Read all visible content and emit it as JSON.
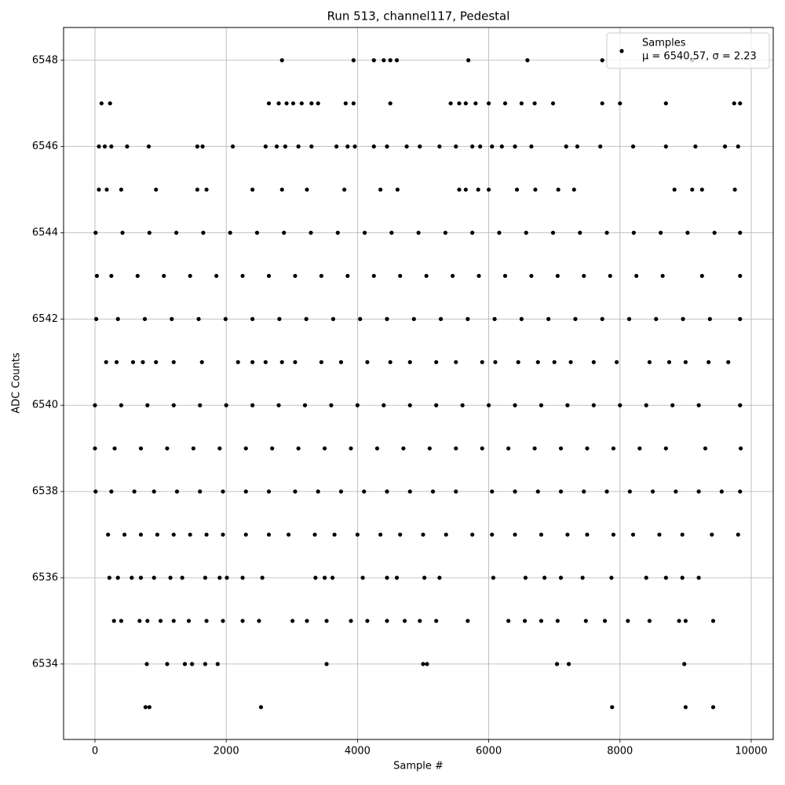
{
  "chart_data": {
    "type": "scatter",
    "title": "Run 513, channel117, Pedestal",
    "x_label": "Sample #",
    "y_label": "ADC Counts",
    "legend_stats": "μ = 6540.57, σ = 2.23",
    "legend_loc": "upper right",
    "grid": true,
    "xlim": [
      -478,
      10335
    ],
    "ylim": [
      6532.25,
      6548.76
    ],
    "xticks": [
      0,
      2000,
      4000,
      6000,
      8000,
      10000
    ],
    "yticks": [
      6534,
      6536,
      6538,
      6540,
      6542,
      6544,
      6546,
      6548
    ],
    "series": [
      {
        "name": "Samples",
        "color": "#000000",
        "x": [
          2850,
          3940,
          4250,
          4400,
          4500,
          4600,
          5690,
          6590,
          7730,
          9100,
          100,
          230,
          2650,
          2800,
          2920,
          3020,
          3150,
          3300,
          3400,
          3820,
          3940,
          4500,
          5420,
          5550,
          5650,
          5800,
          6000,
          6250,
          6500,
          6700,
          6980,
          7730,
          8000,
          8700,
          9740,
          9830,
          60,
          150,
          250,
          490,
          820,
          1560,
          1640,
          2100,
          2600,
          2770,
          2900,
          3100,
          3300,
          3680,
          3850,
          3960,
          4250,
          4450,
          4750,
          4950,
          5250,
          5500,
          5750,
          5870,
          6050,
          6200,
          6400,
          6650,
          7180,
          7350,
          7700,
          8200,
          8700,
          9150,
          9600,
          9800,
          60,
          180,
          400,
          930,
          1560,
          1700,
          2400,
          2850,
          3230,
          3800,
          4350,
          4610,
          5550,
          5650,
          5840,
          6000,
          6430,
          6710,
          7060,
          7300,
          8830,
          9100,
          9250,
          9750,
          10,
          420,
          830,
          1240,
          1650,
          2060,
          2470,
          2880,
          3290,
          3700,
          4110,
          4520,
          4930,
          5340,
          5750,
          6160,
          6570,
          6980,
          7390,
          7800,
          8210,
          8620,
          9030,
          9440,
          9830,
          30,
          250,
          650,
          1050,
          1450,
          1850,
          2250,
          2650,
          3050,
          3450,
          3850,
          4250,
          4650,
          5050,
          5450,
          5850,
          6250,
          6650,
          7050,
          7450,
          7850,
          8250,
          8650,
          9250,
          9830,
          20,
          350,
          760,
          1170,
          1580,
          1990,
          2400,
          2810,
          3220,
          3630,
          4040,
          4450,
          4860,
          5270,
          5680,
          6090,
          6500,
          6910,
          7320,
          7730,
          8140,
          8550,
          8960,
          9370,
          9830,
          170,
          330,
          580,
          730,
          930,
          1200,
          1630,
          2180,
          2400,
          2600,
          2850,
          3050,
          3450,
          3750,
          4150,
          4500,
          4800,
          5200,
          5500,
          5900,
          6100,
          6450,
          6750,
          7000,
          7250,
          7600,
          7950,
          8450,
          8750,
          9000,
          9350,
          9650,
          0,
          400,
          800,
          1200,
          1600,
          2000,
          2400,
          2800,
          3200,
          3600,
          4000,
          4400,
          4800,
          5200,
          5600,
          6000,
          6400,
          6800,
          7200,
          7600,
          8000,
          8400,
          8800,
          9200,
          9830,
          0,
          300,
          700,
          1100,
          1500,
          1900,
          2300,
          2700,
          3100,
          3500,
          3900,
          4300,
          4700,
          5100,
          5500,
          5900,
          6300,
          6700,
          7100,
          7500,
          7900,
          8300,
          8700,
          9300,
          9840,
          10,
          250,
          600,
          900,
          1250,
          1600,
          1950,
          2300,
          2650,
          3050,
          3400,
          3750,
          4100,
          4450,
          4800,
          5150,
          5500,
          6050,
          6400,
          6750,
          7100,
          7450,
          7800,
          8150,
          8500,
          8850,
          9200,
          9550,
          9830,
          200,
          450,
          700,
          950,
          1200,
          1450,
          1700,
          1950,
          2300,
          2650,
          2950,
          3350,
          3650,
          4000,
          4350,
          4650,
          5000,
          5350,
          5750,
          6050,
          6400,
          6800,
          7200,
          7500,
          7900,
          8200,
          8600,
          8950,
          9400,
          9800,
          220,
          350,
          560,
          700,
          900,
          1150,
          1330,
          1680,
          1900,
          2010,
          2250,
          2550,
          3360,
          3500,
          3620,
          4080,
          4450,
          4600,
          5020,
          5250,
          6070,
          6560,
          6850,
          7100,
          7430,
          7870,
          8400,
          8700,
          8950,
          9200,
          290,
          400,
          680,
          800,
          1000,
          1200,
          1430,
          1700,
          1950,
          2250,
          2500,
          3010,
          3230,
          3530,
          3900,
          4150,
          4450,
          4720,
          4950,
          5200,
          5680,
          6300,
          6550,
          6800,
          7050,
          7480,
          7770,
          8120,
          8450,
          8900,
          9000,
          9420,
          790,
          1100,
          1370,
          1480,
          1680,
          1870,
          3530,
          5000,
          5060,
          7040,
          7220,
          8980,
          770,
          830,
          2530,
          7880,
          9000,
          9420
        ],
        "values": [
          6548,
          6548,
          6548,
          6548,
          6548,
          6548,
          6548,
          6548,
          6548,
          6548,
          6547,
          6547,
          6547,
          6547,
          6547,
          6547,
          6547,
          6547,
          6547,
          6547,
          6547,
          6547,
          6547,
          6547,
          6547,
          6547,
          6547,
          6547,
          6547,
          6547,
          6547,
          6547,
          6547,
          6547,
          6547,
          6547,
          6546,
          6546,
          6546,
          6546,
          6546,
          6546,
          6546,
          6546,
          6546,
          6546,
          6546,
          6546,
          6546,
          6546,
          6546,
          6546,
          6546,
          6546,
          6546,
          6546,
          6546,
          6546,
          6546,
          6546,
          6546,
          6546,
          6546,
          6546,
          6546,
          6546,
          6546,
          6546,
          6546,
          6546,
          6546,
          6546,
          6545,
          6545,
          6545,
          6545,
          6545,
          6545,
          6545,
          6545,
          6545,
          6545,
          6545,
          6545,
          6545,
          6545,
          6545,
          6545,
          6545,
          6545,
          6545,
          6545,
          6545,
          6545,
          6545,
          6545,
          6544,
          6544,
          6544,
          6544,
          6544,
          6544,
          6544,
          6544,
          6544,
          6544,
          6544,
          6544,
          6544,
          6544,
          6544,
          6544,
          6544,
          6544,
          6544,
          6544,
          6544,
          6544,
          6544,
          6544,
          6544,
          6543,
          6543,
          6543,
          6543,
          6543,
          6543,
          6543,
          6543,
          6543,
          6543,
          6543,
          6543,
          6543,
          6543,
          6543,
          6543,
          6543,
          6543,
          6543,
          6543,
          6543,
          6543,
          6543,
          6543,
          6543,
          6542,
          6542,
          6542,
          6542,
          6542,
          6542,
          6542,
          6542,
          6542,
          6542,
          6542,
          6542,
          6542,
          6542,
          6542,
          6542,
          6542,
          6542,
          6542,
          6542,
          6542,
          6542,
          6542,
          6542,
          6542,
          6541,
          6541,
          6541,
          6541,
          6541,
          6541,
          6541,
          6541,
          6541,
          6541,
          6541,
          6541,
          6541,
          6541,
          6541,
          6541,
          6541,
          6541,
          6541,
          6541,
          6541,
          6541,
          6541,
          6541,
          6541,
          6541,
          6541,
          6541,
          6541,
          6541,
          6541,
          6541,
          6540,
          6540,
          6540,
          6540,
          6540,
          6540,
          6540,
          6540,
          6540,
          6540,
          6540,
          6540,
          6540,
          6540,
          6540,
          6540,
          6540,
          6540,
          6540,
          6540,
          6540,
          6540,
          6540,
          6540,
          6540,
          6539,
          6539,
          6539,
          6539,
          6539,
          6539,
          6539,
          6539,
          6539,
          6539,
          6539,
          6539,
          6539,
          6539,
          6539,
          6539,
          6539,
          6539,
          6539,
          6539,
          6539,
          6539,
          6539,
          6539,
          6539,
          6538,
          6538,
          6538,
          6538,
          6538,
          6538,
          6538,
          6538,
          6538,
          6538,
          6538,
          6538,
          6538,
          6538,
          6538,
          6538,
          6538,
          6538,
          6538,
          6538,
          6538,
          6538,
          6538,
          6538,
          6538,
          6538,
          6538,
          6538,
          6538,
          6537,
          6537,
          6537,
          6537,
          6537,
          6537,
          6537,
          6537,
          6537,
          6537,
          6537,
          6537,
          6537,
          6537,
          6537,
          6537,
          6537,
          6537,
          6537,
          6537,
          6537,
          6537,
          6537,
          6537,
          6537,
          6537,
          6537,
          6537,
          6537,
          6537,
          6536,
          6536,
          6536,
          6536,
          6536,
          6536,
          6536,
          6536,
          6536,
          6536,
          6536,
          6536,
          6536,
          6536,
          6536,
          6536,
          6536,
          6536,
          6536,
          6536,
          6536,
          6536,
          6536,
          6536,
          6536,
          6536,
          6536,
          6536,
          6536,
          6536,
          6535,
          6535,
          6535,
          6535,
          6535,
          6535,
          6535,
          6535,
          6535,
          6535,
          6535,
          6535,
          6535,
          6535,
          6535,
          6535,
          6535,
          6535,
          6535,
          6535,
          6535,
          6535,
          6535,
          6535,
          6535,
          6535,
          6535,
          6535,
          6535,
          6535,
          6535,
          6535,
          6534,
          6534,
          6534,
          6534,
          6534,
          6534,
          6534,
          6534,
          6534,
          6534,
          6534,
          6534,
          6533,
          6533,
          6533,
          6533,
          6533,
          6533
        ]
      }
    ]
  }
}
